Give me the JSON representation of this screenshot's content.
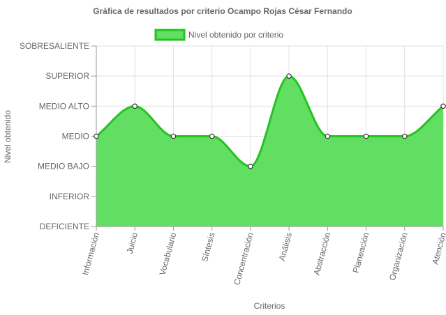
{
  "chart_data": {
    "type": "area",
    "title": "Gráfica de resultados por criterio Ocampo Rojas César Fernando",
    "xlabel": "Criterios",
    "ylabel": "Nivel obtenido",
    "y_levels": [
      "DEFICIENTE",
      "INFERIOR",
      "MEDIO BAJO",
      "MEDIO",
      "MEDIO ALTO",
      "SUPERIOR",
      "SOBRESALIENTE"
    ],
    "ylim": [
      0,
      6
    ],
    "categories": [
      "Información",
      "Juicio",
      "Vocabulario",
      "Síntesis",
      "Concentración",
      "Análisis",
      "Abstracción",
      "Planeación",
      "Organización",
      "Atención"
    ],
    "series": [
      {
        "name": "Nivel obtenido por criterio",
        "values": [
          3,
          4,
          3,
          3,
          2,
          5,
          3,
          3,
          3,
          4
        ],
        "values_labels": [
          "MEDIO",
          "MEDIO ALTO",
          "MEDIO",
          "MEDIO",
          "MEDIO BAJO",
          "SUPERIOR",
          "MEDIO",
          "MEDIO",
          "MEDIO",
          "MEDIO ALTO"
        ]
      }
    ],
    "legend_position": "top",
    "grid": true,
    "colors": {
      "fill": "#62DE62",
      "line": "#22C322",
      "grid": "#E0E0E0",
      "axis": "#999999",
      "point_fill": "#FFFFFF",
      "point_stroke": "#333333"
    }
  }
}
